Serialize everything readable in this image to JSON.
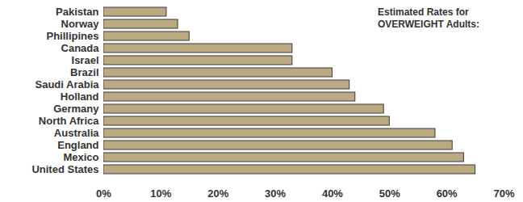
{
  "chart_data": {
    "type": "bar",
    "orientation": "horizontal",
    "title": "Estimated Rates for OVERWEIGHT Adults:",
    "categories": [
      "Pakistan",
      "Norway",
      "Phillipines",
      "Canada",
      "Israel",
      "Brazil",
      "Saudi Arabia",
      "Holland",
      "Germany",
      "North Africa",
      "Australia",
      "England",
      "Mexico",
      "United States"
    ],
    "values": [
      11,
      13,
      15,
      33,
      33,
      40,
      43,
      44,
      49,
      50,
      58,
      61,
      63,
      65
    ],
    "color": "#bba982",
    "xlim": [
      0,
      70
    ],
    "xticks": [
      {
        "value": 0,
        "label": "0%"
      },
      {
        "value": 10,
        "label": "10%"
      },
      {
        "value": 20,
        "label": "20%"
      },
      {
        "value": 30,
        "label": "30%"
      },
      {
        "value": 40,
        "label": "40%"
      },
      {
        "value": 50,
        "label": "50%"
      },
      {
        "value": 60,
        "label": "60%"
      },
      {
        "value": 70,
        "label": "70%"
      }
    ],
    "grid": false
  }
}
